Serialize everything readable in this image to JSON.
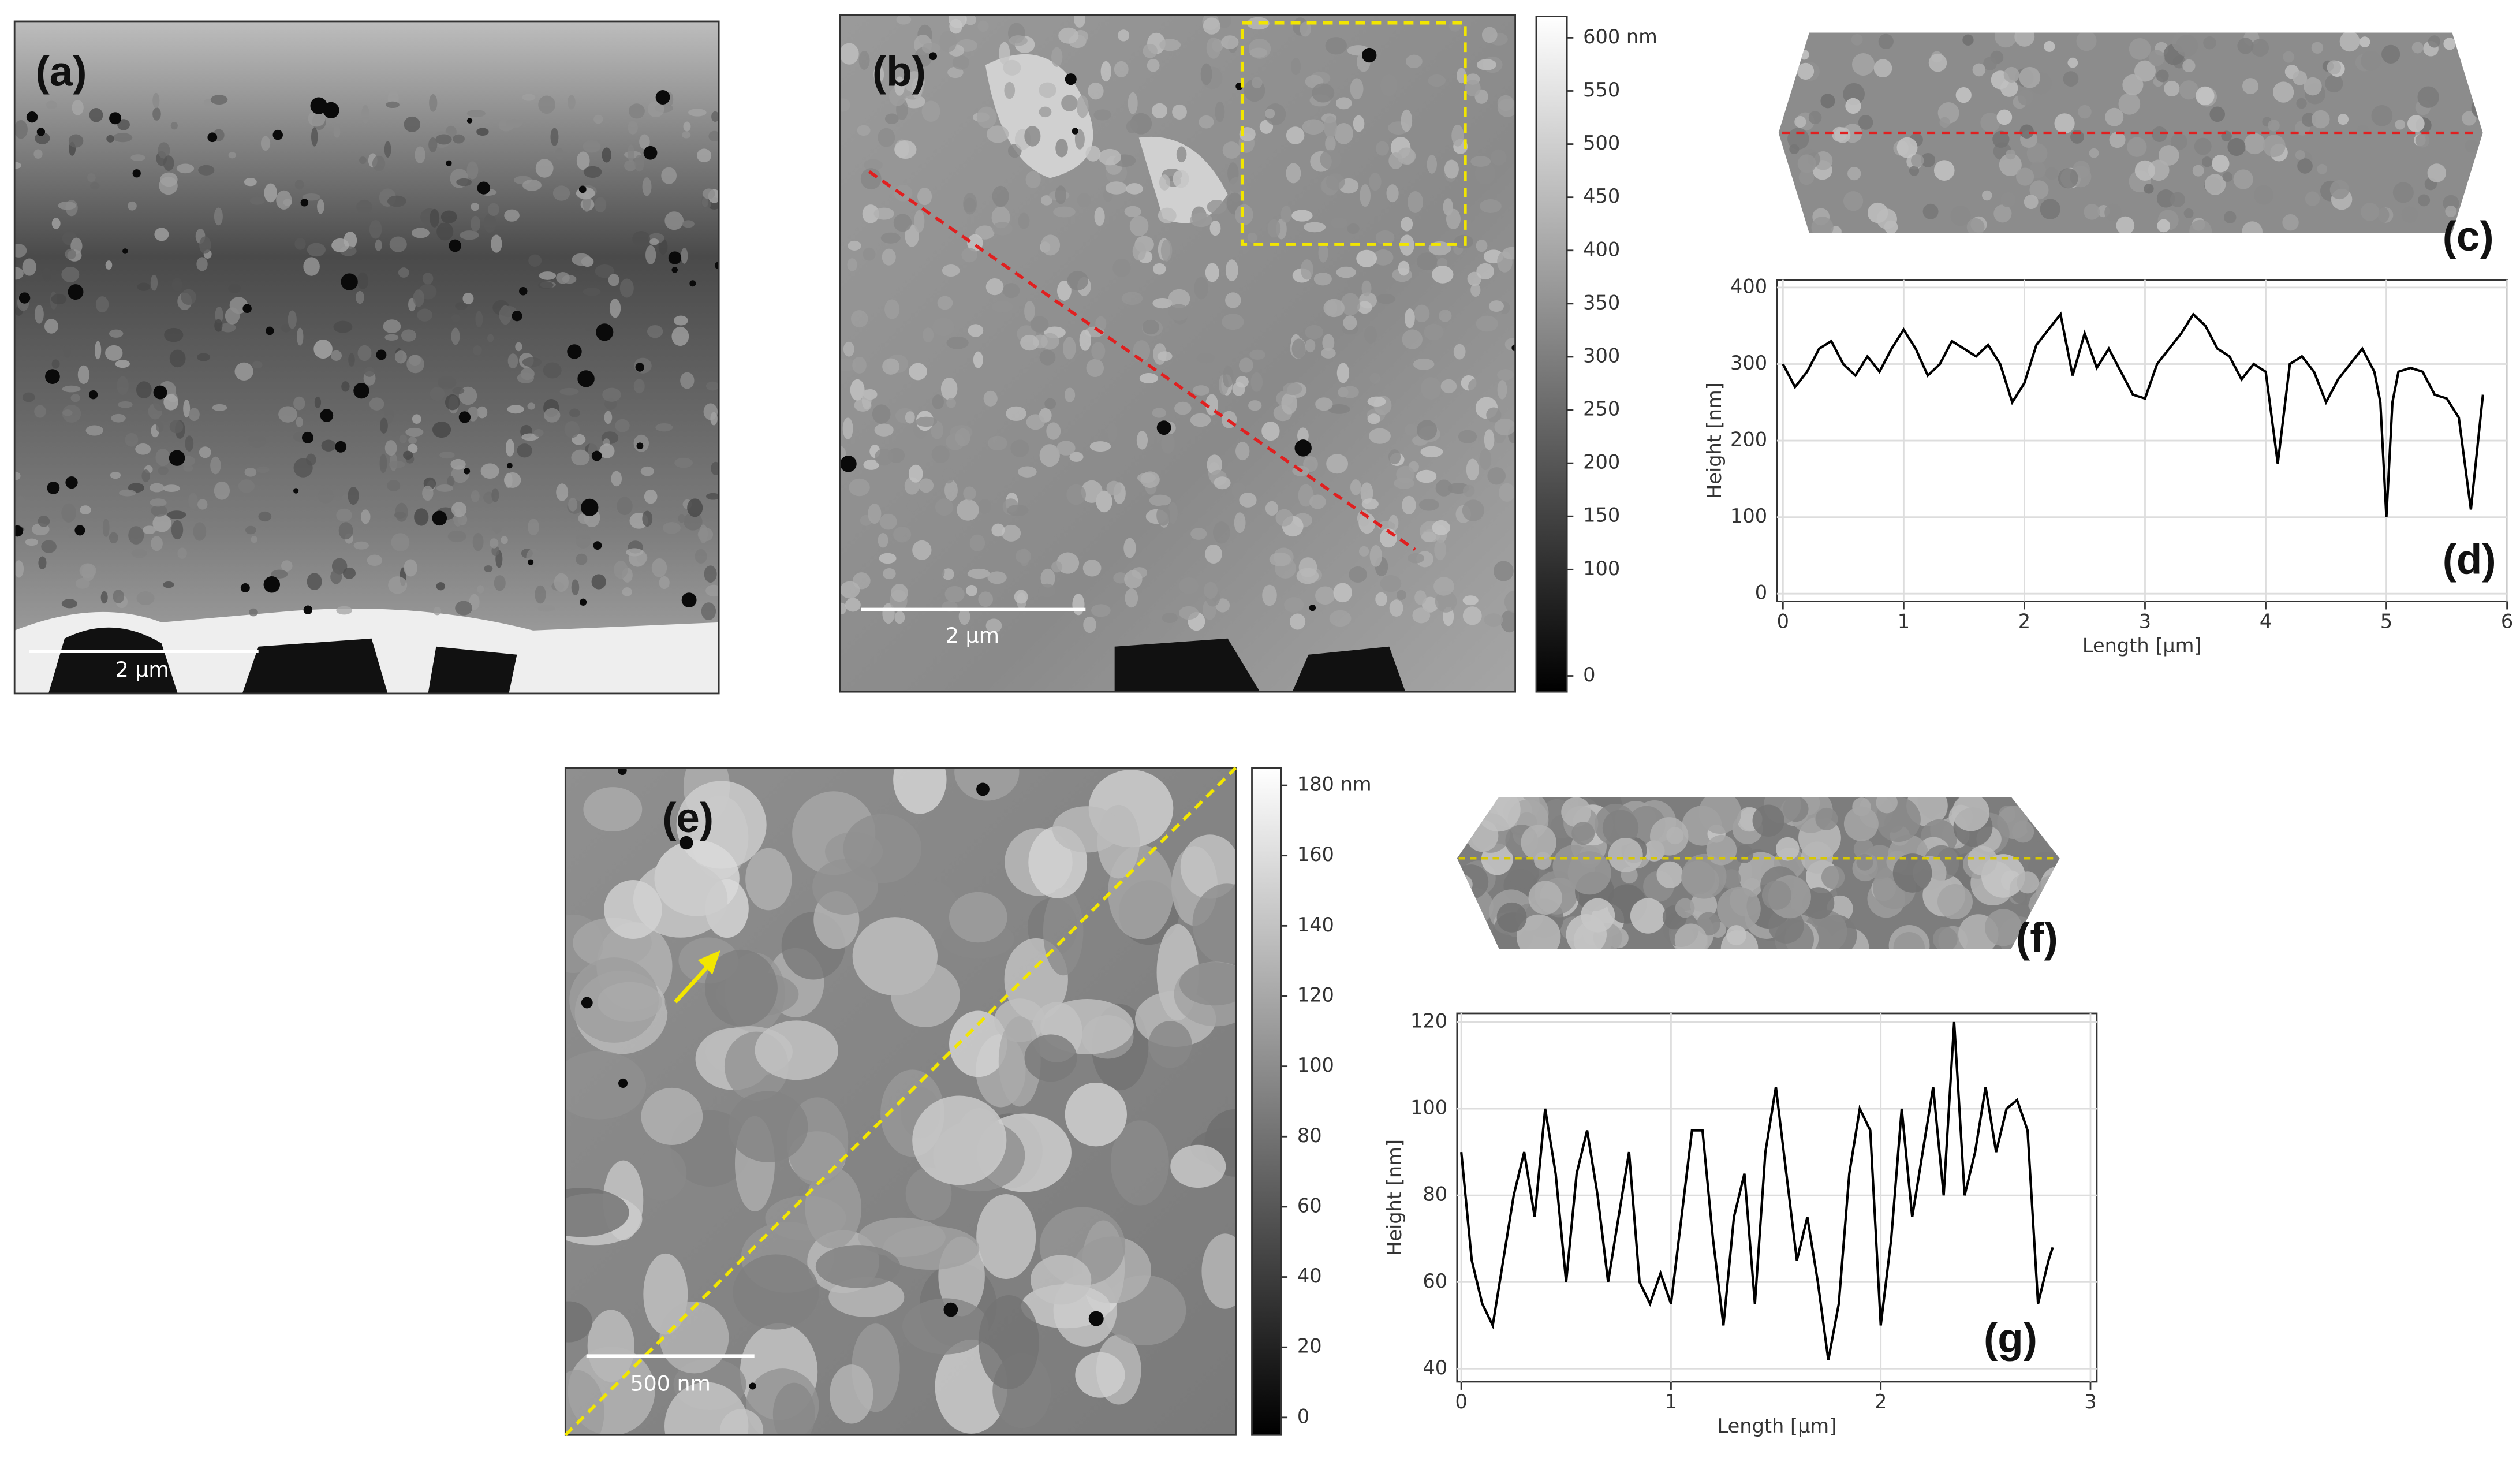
{
  "panels": {
    "a": {
      "label": "(a)",
      "scale_bar": "2 µm"
    },
    "b": {
      "label": "(b)",
      "scale_bar": "2 µm",
      "colorbar": {
        "lim": [
          -15,
          620
        ],
        "ticks": [
          0,
          100,
          150,
          200,
          250,
          300,
          350,
          400,
          450,
          500,
          550,
          {
            "value": 600,
            "label": "600 nm"
          }
        ]
      }
    },
    "c": {
      "label": "(c)"
    },
    "d": {
      "label": "(d)"
    },
    "e": {
      "label": "(e)",
      "scale_bar": "500 nm",
      "colorbar": {
        "lim": [
          -5,
          185
        ],
        "ticks": [
          0,
          20,
          40,
          60,
          80,
          100,
          120,
          140,
          160,
          {
            "value": 180,
            "label": "180 nm"
          }
        ]
      }
    },
    "f": {
      "label": "(f)"
    },
    "g": {
      "label": "(g)"
    }
  },
  "chart_data": [
    {
      "type": "line",
      "x_label": "Length [µm]",
      "y_label": "Height [nm]",
      "color": "#000000",
      "grid": true,
      "xlim": [
        -0.05,
        6
      ],
      "ylim": [
        -10,
        410
      ],
      "xticks": [
        0,
        1,
        2,
        3,
        4,
        5,
        6
      ],
      "yticks": [
        0,
        100,
        200,
        300,
        400
      ],
      "x": [
        0,
        0.1,
        0.2,
        0.3,
        0.4,
        0.5,
        0.6,
        0.7,
        0.8,
        0.9,
        1.0,
        1.1,
        1.2,
        1.3,
        1.4,
        1.5,
        1.6,
        1.7,
        1.8,
        1.9,
        2.0,
        2.1,
        2.2,
        2.3,
        2.4,
        2.5,
        2.6,
        2.7,
        2.8,
        2.9,
        3.0,
        3.1,
        3.2,
        3.3,
        3.4,
        3.5,
        3.6,
        3.7,
        3.8,
        3.9,
        4.0,
        4.1,
        4.2,
        4.3,
        4.4,
        4.5,
        4.6,
        4.7,
        4.8,
        4.9,
        4.95,
        5.0,
        5.05,
        5.1,
        5.2,
        5.3,
        5.4,
        5.5,
        5.6,
        5.7,
        5.8
      ],
      "values": [
        300,
        270,
        290,
        320,
        330,
        300,
        285,
        310,
        290,
        320,
        345,
        320,
        285,
        300,
        330,
        320,
        310,
        325,
        300,
        250,
        275,
        325,
        345,
        365,
        285,
        340,
        295,
        320,
        290,
        260,
        255,
        300,
        320,
        340,
        365,
        350,
        320,
        310,
        280,
        300,
        290,
        170,
        300,
        310,
        290,
        250,
        280,
        300,
        320,
        290,
        250,
        100,
        250,
        290,
        295,
        290,
        260,
        255,
        230,
        110,
        260
      ]
    },
    {
      "type": "line",
      "x_label": "Length [µm]",
      "y_label": "Height [nm]",
      "color": "#000000",
      "grid": true,
      "xlim": [
        -0.02,
        3.03
      ],
      "ylim": [
        37,
        122
      ],
      "xticks": [
        0,
        1,
        2,
        3
      ],
      "yticks": [
        40,
        60,
        80,
        100,
        120
      ],
      "x": [
        0,
        0.05,
        0.1,
        0.15,
        0.2,
        0.25,
        0.3,
        0.35,
        0.4,
        0.45,
        0.5,
        0.55,
        0.6,
        0.65,
        0.7,
        0.75,
        0.8,
        0.85,
        0.9,
        0.95,
        1.0,
        1.05,
        1.1,
        1.15,
        1.2,
        1.25,
        1.3,
        1.35,
        1.4,
        1.45,
        1.5,
        1.55,
        1.6,
        1.65,
        1.7,
        1.75,
        1.8,
        1.85,
        1.9,
        1.95,
        2.0,
        2.05,
        2.1,
        2.15,
        2.2,
        2.25,
        2.3,
        2.35,
        2.4,
        2.45,
        2.5,
        2.55,
        2.6,
        2.65,
        2.7,
        2.75,
        2.8,
        2.82
      ],
      "values": [
        90,
        65,
        55,
        50,
        65,
        80,
        90,
        75,
        100,
        85,
        60,
        85,
        95,
        80,
        60,
        75,
        90,
        60,
        55,
        62,
        55,
        75,
        95,
        95,
        70,
        50,
        75,
        85,
        55,
        90,
        105,
        85,
        65,
        75,
        60,
        42,
        55,
        85,
        100,
        95,
        50,
        70,
        100,
        75,
        90,
        105,
        80,
        120,
        80,
        90,
        105,
        90,
        100,
        102,
        95,
        55,
        65,
        68
      ]
    }
  ]
}
